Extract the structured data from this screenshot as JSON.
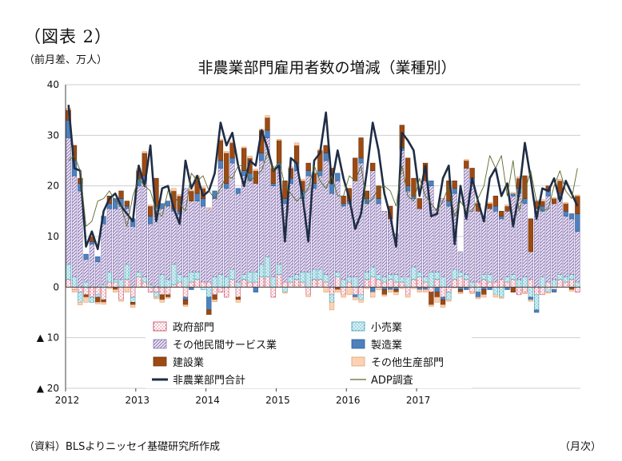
{
  "figure_label": "（図表 2）",
  "source_note": "（資料）BLSよりニッセイ基礎研究所作成",
  "x_unit": "（月次）",
  "colors": {
    "government": "#f3b6c0",
    "retail": "#9cd6df",
    "other_services": "#c9b9dc",
    "manufacturing": "#4f81bd",
    "construction": "#9c4a14",
    "other_goods": "#fbd3b4",
    "total_line": "#1f2d45",
    "adp_line": "#5c6b2c"
  },
  "chart_data": {
    "type": "bar",
    "title": "非農業部門雇用者数の増減（業種別）",
    "ylabel": "（前月差、万人）",
    "ylim": [
      -20,
      40
    ],
    "y_ticks": [
      40,
      30,
      20,
      10,
      0,
      -10,
      -20
    ],
    "y_tick_labels": [
      "40",
      "30",
      "20",
      "10",
      "0",
      "▲ 10",
      "▲ 20"
    ],
    "x_start": "2012-01",
    "x_tick_labels": [
      "2012",
      "2013",
      "2014",
      "2015",
      "2016",
      "2017"
    ],
    "grid": "horizontal",
    "legend_position": "bottom-inside",
    "series": [
      {
        "name": "政府部門",
        "key": "gov",
        "kind": "bar",
        "values": [
          1.5,
          -0.5,
          -1.0,
          -1.5,
          -2.0,
          -1.5,
          -2.5,
          1.0,
          1.0,
          -2.5,
          1.5,
          -2.0,
          2.0,
          1.0,
          -1.0,
          -1.0,
          -1.5,
          -1.5,
          0.5,
          1.0,
          -2.0,
          1.0,
          1.5,
          1.0,
          1.0,
          -1.5,
          -1.0,
          -2.0,
          1.5,
          -2.0,
          1.5,
          1.0,
          1.0,
          2.0,
          2.0,
          -2.0,
          2.5,
          1.0,
          1.0,
          1.5,
          1.0,
          -1.5,
          1.5,
          1.5,
          1.0,
          -1.5,
          2.0,
          -1.5,
          1.0,
          -1.5,
          -1.5,
          1.5,
          2.0,
          1.5,
          1.0,
          1.5,
          1.0,
          1.0,
          -1.5,
          1.5,
          2.0,
          1.0,
          -1.0,
          1.5,
          -2.0,
          -1.0,
          1.5,
          2.0,
          1.5,
          -1.0,
          1.0,
          1.5,
          1.0,
          1.0,
          1.5,
          1.0,
          1.5,
          -1.5,
          -1.0,
          1.5,
          -1.5,
          -1.5,
          1.0,
          -0.5,
          1.5,
          1.0,
          1.5,
          -1.0
        ]
      },
      {
        "name": "小売業",
        "key": "retail",
        "kind": "bar",
        "values": [
          3.0,
          2.0,
          -2.0,
          1.0,
          -1.0,
          -0.5,
          0.5,
          2.0,
          0.5,
          1.5,
          3.0,
          -1.0,
          1.0,
          1.0,
          0.5,
          -1.0,
          2.5,
          1.5,
          4.0,
          1.5,
          2.0,
          2.0,
          1.5,
          -0.5,
          -2.0,
          2.0,
          2.5,
          2.0,
          2.0,
          1.0,
          1.0,
          2.0,
          2.0,
          2.5,
          4.0,
          2.0,
          2.0,
          -1.0,
          1.0,
          1.0,
          2.0,
          3.0,
          2.0,
          2.0,
          1.5,
          -1.5,
          1.0,
          1.5,
          1.0,
          2.0,
          -1.0,
          1.5,
          2.0,
          1.0,
          1.0,
          1.0,
          1.5,
          1.0,
          2.0,
          2.5,
          1.0,
          1.0,
          3.0,
          1.5,
          2.0,
          -1.5,
          2.0,
          1.0,
          1.0,
          1.0,
          -1.0,
          1.0,
          1.5,
          -1.5,
          -2.0,
          1.0,
          1.0,
          1.5,
          2.0,
          -2.0,
          -3.0,
          2.0,
          -1.0,
          1.5,
          1.0,
          1.0,
          1.0,
          1.0
        ]
      },
      {
        "name": "その他民間サービス業",
        "key": "serv",
        "kind": "bar",
        "values": [
          25.0,
          20.0,
          19.0,
          4.5,
          8.5,
          5.0,
          12.0,
          12.5,
          14.0,
          14.5,
          11.0,
          12.0,
          17.0,
          19.0,
          12.0,
          15.5,
          13.0,
          14.5,
          10.5,
          12.0,
          17.5,
          14.0,
          14.0,
          15.0,
          14.5,
          15.5,
          21.0,
          17.5,
          21.0,
          17.5,
          19.5,
          18.0,
          17.5,
          20.5,
          23.5,
          18.0,
          19.0,
          15.5,
          18.5,
          20.5,
          14.5,
          19.0,
          16.0,
          18.5,
          22.5,
          18.5,
          18.0,
          14.5,
          14.5,
          19.0,
          24.5,
          13.5,
          19.0,
          14.0,
          13.0,
          11.0,
          8.0,
          25.0,
          17.0,
          13.5,
          12.5,
          19.0,
          17.0,
          12.5,
          15.5,
          16.0,
          15.0,
          4.0,
          21.0,
          19.5,
          14.0,
          11.5,
          13.0,
          14.0,
          12.0,
          13.0,
          15.5,
          17.0,
          14.5,
          5.5,
          15.5,
          13.0,
          17.0,
          15.0,
          15.0,
          12.0,
          11.0,
          10.0
        ]
      },
      {
        "name": "製造業",
        "key": "mfg",
        "kind": "bar",
        "values": [
          3.5,
          3.0,
          1.5,
          1.0,
          0.5,
          1.0,
          1.5,
          1.0,
          2.0,
          1.5,
          0.5,
          1.5,
          1.5,
          1.0,
          1.5,
          0.5,
          1.0,
          1.0,
          0.5,
          0.5,
          -0.5,
          -0.5,
          1.5,
          1.5,
          -2.5,
          1.5,
          1.5,
          1.0,
          1.0,
          1.0,
          1.0,
          1.5,
          -1.0,
          1.5,
          1.5,
          0.5,
          1.0,
          1.0,
          1.0,
          1.5,
          1.5,
          1.0,
          1.0,
          1.0,
          1.5,
          2.0,
          1.5,
          0.5,
          0.5,
          -0.5,
          1.0,
          1.0,
          -1.0,
          1.0,
          -0.5,
          -0.5,
          -0.5,
          0.5,
          1.0,
          0.5,
          -0.5,
          -0.5,
          1.0,
          -1.0,
          -0.5,
          1.0,
          1.0,
          -0.5,
          -0.5,
          1.0,
          -1.0,
          -0.5,
          -0.5,
          1.0,
          0.5,
          -0.5,
          0.5,
          1.0,
          1.0,
          -0.5,
          -0.5,
          1.0,
          1.0,
          -0.5,
          1.0,
          1.0,
          1.0,
          3.5
        ]
      },
      {
        "name": "建設業",
        "key": "cons",
        "kind": "bar",
        "values": [
          2.0,
          3.0,
          1.0,
          -0.5,
          1.0,
          -1.0,
          -0.5,
          1.5,
          -0.5,
          1.5,
          1.0,
          -0.5,
          1.5,
          4.5,
          2.0,
          5.5,
          -1.0,
          -0.5,
          3.5,
          3.0,
          -1.0,
          2.0,
          3.0,
          2.0,
          -1.5,
          -1.0,
          4.0,
          6.0,
          3.0,
          -0.5,
          4.5,
          3.0,
          2.5,
          4.5,
          2.5,
          3.0,
          4.5,
          3.5,
          2.0,
          3.5,
          2.0,
          1.5,
          2.0,
          4.0,
          1.5,
          3.0,
          -0.5,
          1.5,
          2.5,
          4.5,
          4.0,
          1.5,
          1.5,
          2.5,
          -1.0,
          2.5,
          -0.5,
          4.5,
          5.5,
          3.5,
          2.0,
          3.5,
          -2.5,
          -1.0,
          -1.0,
          4.0,
          1.5,
          -0.5,
          1.5,
          2.0,
          1.5,
          -1.0,
          1.0,
          2.0,
          1.0,
          1.0,
          -1.0,
          2.0,
          4.5,
          6.5,
          1.5,
          1.0,
          1.0,
          1.0,
          2.5,
          1.5,
          -0.5,
          3.5
        ]
      },
      {
        "name": "その他生産部門",
        "key": "ogood",
        "kind": "bar",
        "values": [
          0.3,
          -0.5,
          -0.5,
          -1.0,
          0.2,
          -0.3,
          -0.4,
          -0.3,
          -0.5,
          -0.3,
          -1.0,
          -0.5,
          0.4,
          0.3,
          0.2,
          -0.3,
          -0.5,
          -0.2,
          0.5,
          0.3,
          -0.3,
          0.2,
          0.5,
          0.3,
          0.2,
          -0.4,
          0.2,
          0.3,
          0.2,
          -0.5,
          0.2,
          0.4,
          0.3,
          0.2,
          0.4,
          0.3,
          0.2,
          -0.2,
          0.3,
          0.5,
          0.3,
          -0.4,
          0.2,
          0.2,
          -1.0,
          -1.5,
          -0.5,
          -0.5,
          -1.5,
          -0.5,
          -0.5,
          -0.3,
          -1.0,
          -0.5,
          -0.3,
          -0.5,
          -0.5,
          -0.3,
          -0.5,
          -0.3,
          -0.5,
          -0.5,
          -0.3,
          -1.0,
          -0.5,
          -0.3,
          -0.2,
          -0.3,
          0.2,
          -0.3,
          -0.3,
          -0.5,
          0.2,
          -0.5,
          -0.2,
          0.3,
          0.2,
          0.3,
          -0.3,
          -0.3,
          0.2,
          0.3,
          -0.2,
          0.2,
          0.3,
          0.2,
          -0.3,
          0.2
        ]
      },
      {
        "name": "非農業部門合計",
        "key": "total",
        "kind": "line",
        "values": [
          36.0,
          23.5,
          23.0,
          8.0,
          11.0,
          7.5,
          15.0,
          17.5,
          18.5,
          16.0,
          14.5,
          13.0,
          24.0,
          20.0,
          28.0,
          13.0,
          19.5,
          20.0,
          15.5,
          12.5,
          25.0,
          19.5,
          22.0,
          18.0,
          19.0,
          22.5,
          32.5,
          28.0,
          30.5,
          24.0,
          20.0,
          25.0,
          24.0,
          31.0,
          27.5,
          23.0,
          24.0,
          9.0,
          25.5,
          24.5,
          18.0,
          9.0,
          25.0,
          26.5,
          34.5,
          20.5,
          27.0,
          21.5,
          17.5,
          11.5,
          14.5,
          23.0,
          32.5,
          27.0,
          18.5,
          14.0,
          8.0,
          30.5,
          29.0,
          27.0,
          18.0,
          24.0,
          14.0,
          14.5,
          21.5,
          24.0,
          8.5,
          20.0,
          13.5,
          21.5,
          17.0,
          13.0,
          21.5,
          23.5,
          18.0,
          20.5,
          12.0,
          18.5,
          28.5,
          21.5,
          13.5,
          19.5,
          19.0,
          21.5,
          17.0,
          21.0,
          18.5,
          16.0
        ]
      },
      {
        "name": "ADP調査",
        "key": "adp",
        "kind": "line",
        "values": [
          25.0,
          26.0,
          23.0,
          12.0,
          13.0,
          17.0,
          17.5,
          19.0,
          17.0,
          16.0,
          12.0,
          18.0,
          21.5,
          20.0,
          19.0,
          15.0,
          14.0,
          19.0,
          18.0,
          16.5,
          15.0,
          22.5,
          21.0,
          22.0,
          19.0,
          17.5,
          19.5,
          22.0,
          21.5,
          24.0,
          24.0,
          21.0,
          22.0,
          23.0,
          26.5,
          23.0,
          25.0,
          20.0,
          18.5,
          17.0,
          18.0,
          19.5,
          24.0,
          21.0,
          19.5,
          22.0,
          18.0,
          18.0,
          22.0,
          21.0,
          24.0,
          16.5,
          17.5,
          19.5,
          20.0,
          19.0,
          16.0,
          24.0,
          18.0,
          17.0,
          21.5,
          18.0,
          16.5,
          15.0,
          17.0,
          20.0,
          14.0,
          17.0,
          15.0,
          15.0,
          17.5,
          20.0,
          26.0,
          23.5,
          26.0,
          18.0,
          25.0,
          15.0,
          19.0,
          23.0,
          17.0,
          15.0,
          15.5,
          20.0,
          23.0,
          19.0,
          17.5,
          23.5
        ]
      }
    ]
  }
}
